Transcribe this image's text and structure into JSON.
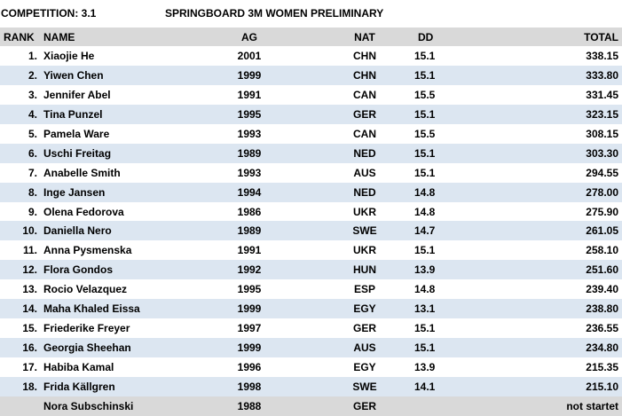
{
  "header": {
    "competition": "COMPETITION: 3.1",
    "event": "SPRINGBOARD 3M WOMEN PRELIMINARY"
  },
  "table": {
    "columns": [
      "RANK",
      "NAME",
      "AG",
      "NAT",
      "DD",
      "TOTAL"
    ],
    "rows": [
      {
        "rank": "1.",
        "name": "Xiaojie He",
        "ag": "2001",
        "nat": "CHN",
        "dd": "15.1",
        "total": "338.15"
      },
      {
        "rank": "2.",
        "name": "Yiwen Chen",
        "ag": "1999",
        "nat": "CHN",
        "dd": "15.1",
        "total": "333.80"
      },
      {
        "rank": "3.",
        "name": "Jennifer Abel",
        "ag": "1991",
        "nat": "CAN",
        "dd": "15.5",
        "total": "331.45"
      },
      {
        "rank": "4.",
        "name": "Tina Punzel",
        "ag": "1995",
        "nat": "GER",
        "dd": "15.1",
        "total": "323.15"
      },
      {
        "rank": "5.",
        "name": "Pamela Ware",
        "ag": "1993",
        "nat": "CAN",
        "dd": "15.5",
        "total": "308.15"
      },
      {
        "rank": "6.",
        "name": "Uschi Freitag",
        "ag": "1989",
        "nat": "NED",
        "dd": "15.1",
        "total": "303.30"
      },
      {
        "rank": "7.",
        "name": "Anabelle Smith",
        "ag": "1993",
        "nat": "AUS",
        "dd": "15.1",
        "total": "294.55"
      },
      {
        "rank": "8.",
        "name": "Inge Jansen",
        "ag": "1994",
        "nat": "NED",
        "dd": "14.8",
        "total": "278.00"
      },
      {
        "rank": "9.",
        "name": "Olena Fedorova",
        "ag": "1986",
        "nat": "UKR",
        "dd": "14.8",
        "total": "275.90"
      },
      {
        "rank": "10.",
        "name": "Daniella Nero",
        "ag": "1989",
        "nat": "SWE",
        "dd": "14.7",
        "total": "261.05"
      },
      {
        "rank": "11.",
        "name": "Anna Pysmenska",
        "ag": "1991",
        "nat": "UKR",
        "dd": "15.1",
        "total": "258.10"
      },
      {
        "rank": "12.",
        "name": "Flora Gondos",
        "ag": "1992",
        "nat": "HUN",
        "dd": "13.9",
        "total": "251.60"
      },
      {
        "rank": "13.",
        "name": "Rocio Velazquez",
        "ag": "1995",
        "nat": "ESP",
        "dd": "14.8",
        "total": "239.40"
      },
      {
        "rank": "14.",
        "name": "Maha Khaled Eissa",
        "ag": "1999",
        "nat": "EGY",
        "dd": "13.1",
        "total": "238.80"
      },
      {
        "rank": "15.",
        "name": "Friederike Freyer",
        "ag": "1997",
        "nat": "GER",
        "dd": "15.1",
        "total": "236.55"
      },
      {
        "rank": "16.",
        "name": "Georgia Sheehan",
        "ag": "1999",
        "nat": "AUS",
        "dd": "15.1",
        "total": "234.80"
      },
      {
        "rank": "17.",
        "name": "Habiba Kamal",
        "ag": "1996",
        "nat": "EGY",
        "dd": "13.9",
        "total": "215.35"
      },
      {
        "rank": "18.",
        "name": "Frida Källgren",
        "ag": "1998",
        "nat": "SWE",
        "dd": "14.1",
        "total": "215.10"
      },
      {
        "name": "Nora Subschinski",
        "ag": "1988",
        "nat": "GER",
        "total": "not startet"
      }
    ]
  }
}
